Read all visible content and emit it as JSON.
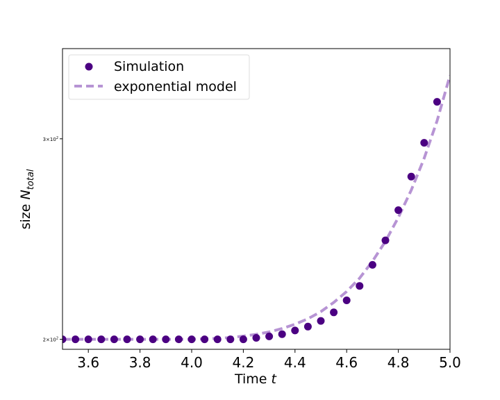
{
  "colors": {
    "simulation": "#4b0082",
    "model": "#b794d4",
    "legend_border": "#dddddd",
    "axes": "#000000"
  },
  "chart_data": {
    "type": "scatter",
    "xlabel_prefix": "Time ",
    "xlabel_var": "t",
    "ylabel_prefix": "size ",
    "ylabel_var": "N",
    "ylabel_sub": "total",
    "xlim": [
      3.5,
      5.0
    ],
    "ylim_log": [
      196,
      360
    ],
    "yscale": "log",
    "xticks": [
      3.6,
      3.8,
      4.0,
      4.2,
      4.4,
      4.6,
      4.8,
      5.0
    ],
    "xtick_labels": [
      "3.6",
      "3.8",
      "4.0",
      "4.2",
      "4.4",
      "4.6",
      "4.8",
      "5.0"
    ],
    "yticks": [
      {
        "value": 200,
        "base": "2×10",
        "exp": "2"
      },
      {
        "value": 300,
        "base": "3×10",
        "exp": "2"
      }
    ],
    "legend_placement": "upper-left",
    "grid": false,
    "series": [
      {
        "name": "Simulation",
        "kind": "scatter",
        "x": [
          3.5,
          3.55,
          3.6,
          3.65,
          3.7,
          3.75,
          3.8,
          3.85,
          3.9,
          3.95,
          4.0,
          4.05,
          4.1,
          4.15,
          4.2,
          4.25,
          4.3,
          4.35,
          4.4,
          4.45,
          4.5,
          4.55,
          4.6,
          4.65,
          4.7,
          4.75,
          4.8,
          4.85,
          4.9,
          4.95
        ],
        "y": [
          200,
          200,
          200,
          200,
          200,
          200,
          200,
          200,
          200,
          200,
          200,
          200,
          200,
          200,
          200,
          200.6,
          201.2,
          202.1,
          203.6,
          205.2,
          207.6,
          211.2,
          216.4,
          222.8,
          232.5,
          244.3,
          259.7,
          277.9,
          297.6,
          323.3
        ]
      },
      {
        "name": "exponential model",
        "kind": "line",
        "x": [
          3.5,
          3.6,
          3.7,
          3.8,
          3.9,
          4.0,
          4.05,
          4.1,
          4.15,
          4.2,
          4.25,
          4.3,
          4.35,
          4.4,
          4.45,
          4.5,
          4.55,
          4.6,
          4.65,
          4.7,
          4.75,
          4.8,
          4.85,
          4.9,
          4.95,
          5.0
        ],
        "y": [
          200,
          200,
          200,
          200,
          200,
          200,
          200.2,
          200.4,
          200.7,
          201.3,
          202,
          203,
          204.4,
          206.2,
          208.5,
          211.5,
          215.5,
          220.3,
          226.3,
          234.2,
          243.8,
          255.9,
          270.4,
          288.4,
          311.1,
          341
        ]
      }
    ]
  }
}
